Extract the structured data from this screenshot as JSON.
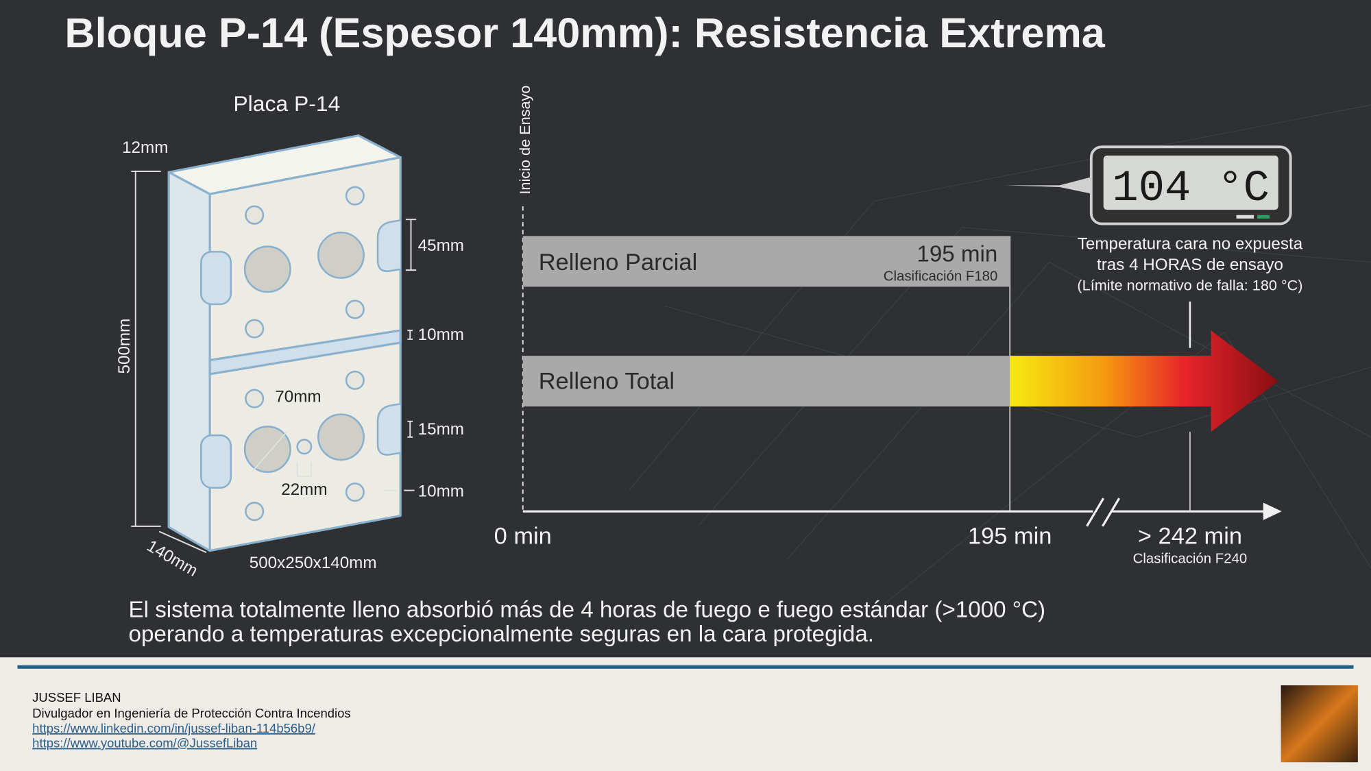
{
  "header": {
    "title": "Bloque P-14 (Espesor 140mm): Resistencia Extrema"
  },
  "block": {
    "title": "Placa P-14",
    "top_thickness": "12mm",
    "height": "500mm",
    "depth": "140mm",
    "size": "500x250x140mm",
    "slot_height": "45mm",
    "joint": "10mm",
    "notch": "15mm",
    "edge": "10mm",
    "hole_diameter": "70mm",
    "web": "22mm"
  },
  "timeline": {
    "axis_label": "Inicio de Ensayo",
    "bars": [
      {
        "label": "Relleno Parcial",
        "value": "195 min",
        "rating": "Clasificación F180"
      },
      {
        "label": "Relleno Total"
      }
    ],
    "ticks": [
      "0 min",
      "195 min",
      "> 242 min"
    ],
    "final_rating": "Clasificación F240",
    "thermometer": {
      "reading": "104 °C",
      "caption": [
        "Temperatura cara no expuesta",
        "tras 4 HORAS de ensayo",
        "(Límite normativo de falla: 180 °C)"
      ]
    }
  },
  "summary": [
    "El sistema totalmente lleno absorbió más de 4 horas de fuego e fuego estándar (>1000 °C)",
    "operando a temperaturas excepcionalmente seguras en la cara protegida."
  ],
  "footer": {
    "name": "JUSSEF LIBAN",
    "role": "Divulgador en Ingeniería de Protección Contra Incendios",
    "links": [
      "https://www.linkedin.com/in/jussef-liban-114b56b9/",
      "https://www.youtube.com/@JussefLiban"
    ]
  }
}
